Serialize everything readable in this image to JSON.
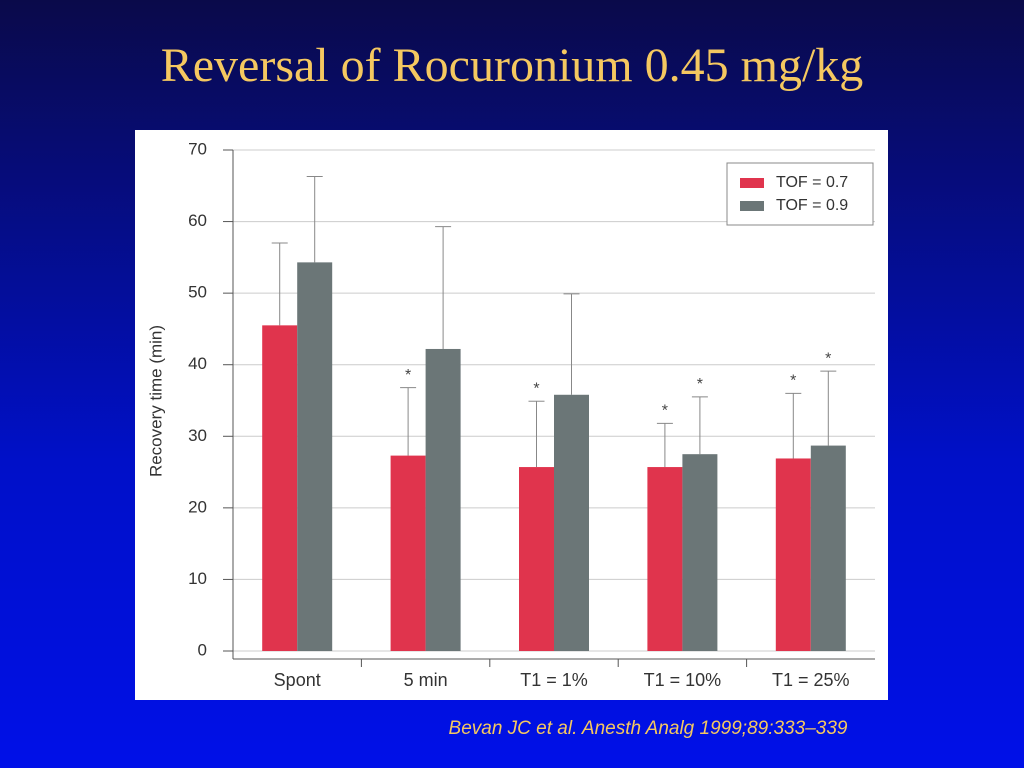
{
  "slide_title": "Reversal of Rocuronium 0.45 mg/kg",
  "citation": "Bevan JC et al. Anesth Analg 1999;89:333–339",
  "chart_data": {
    "type": "bar",
    "y_label": "Recovery time (min)",
    "categories": [
      "Spont",
      "5 min",
      "T1 = 1%",
      "T1 = 10%",
      "T1 = 25%"
    ],
    "series": [
      {
        "name": "TOF = 0.7",
        "color": "#e0344d",
        "values": [
          45.5,
          27.3,
          25.7,
          25.7,
          26.9
        ],
        "errors": [
          11.5,
          9.5,
          9.2,
          6.1,
          9.1
        ],
        "markers": [
          null,
          "*",
          "*",
          "*",
          "*"
        ]
      },
      {
        "name": "TOF = 0.9",
        "color": "#6b7677",
        "values": [
          54.3,
          42.2,
          35.8,
          27.5,
          28.7
        ],
        "errors": [
          12,
          17.1,
          14.1,
          8,
          10.4
        ],
        "markers": [
          null,
          null,
          null,
          "*",
          "*"
        ]
      }
    ],
    "ylim": [
      0,
      70
    ],
    "yticks": [
      0,
      10,
      20,
      30,
      40,
      50,
      60,
      70
    ],
    "grid": true,
    "legend": "upper right"
  }
}
